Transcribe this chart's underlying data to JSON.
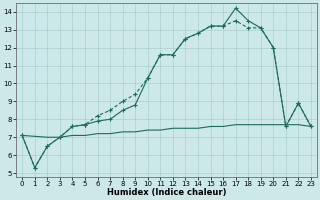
{
  "xlabel": "Humidex (Indice chaleur)",
  "background_color": "#cce8e8",
  "grid_color": "#aacfcf",
  "line_color": "#1a6b5a",
  "xlim": [
    -0.5,
    23.5
  ],
  "ylim": [
    4.8,
    14.5
  ],
  "yticks": [
    5,
    6,
    7,
    8,
    9,
    10,
    11,
    12,
    13,
    14
  ],
  "xticks": [
    0,
    1,
    2,
    3,
    4,
    5,
    6,
    7,
    8,
    9,
    10,
    11,
    12,
    13,
    14,
    15,
    16,
    17,
    18,
    19,
    20,
    21,
    22,
    23
  ],
  "line1_x": [
    0,
    1,
    2,
    3,
    4,
    5,
    6,
    7,
    8,
    9,
    10,
    11,
    12,
    13,
    14,
    15,
    16,
    17,
    18,
    19,
    20,
    21,
    22,
    23
  ],
  "line1_y": [
    7.1,
    5.3,
    6.5,
    7.0,
    7.6,
    7.7,
    7.9,
    8.0,
    8.5,
    8.8,
    10.3,
    11.6,
    11.6,
    12.5,
    12.8,
    13.2,
    13.2,
    14.2,
    13.5,
    13.1,
    12.0,
    7.6,
    8.9,
    7.6
  ],
  "line2_x": [
    0,
    1,
    2,
    3,
    4,
    5,
    6,
    7,
    8,
    9,
    10,
    11,
    12,
    13,
    14,
    15,
    16,
    17,
    18,
    19,
    20,
    21,
    22,
    23
  ],
  "line2_y": [
    7.1,
    5.3,
    6.5,
    7.0,
    7.6,
    7.7,
    8.2,
    8.5,
    9.0,
    9.4,
    10.3,
    11.6,
    11.6,
    12.5,
    12.8,
    13.2,
    13.2,
    13.5,
    13.1,
    13.1,
    12.0,
    7.6,
    8.9,
    7.6
  ],
  "line3_x": [
    0,
    2,
    3,
    4,
    5,
    6,
    7,
    8,
    9,
    10,
    11,
    12,
    13,
    14,
    15,
    16,
    17,
    18,
    19,
    20,
    21,
    22,
    23
  ],
  "line3_y": [
    7.1,
    7.0,
    7.0,
    7.1,
    7.1,
    7.2,
    7.2,
    7.3,
    7.3,
    7.4,
    7.4,
    7.5,
    7.5,
    7.5,
    7.6,
    7.6,
    7.7,
    7.7,
    7.7,
    7.7,
    7.7,
    7.7,
    7.6
  ]
}
